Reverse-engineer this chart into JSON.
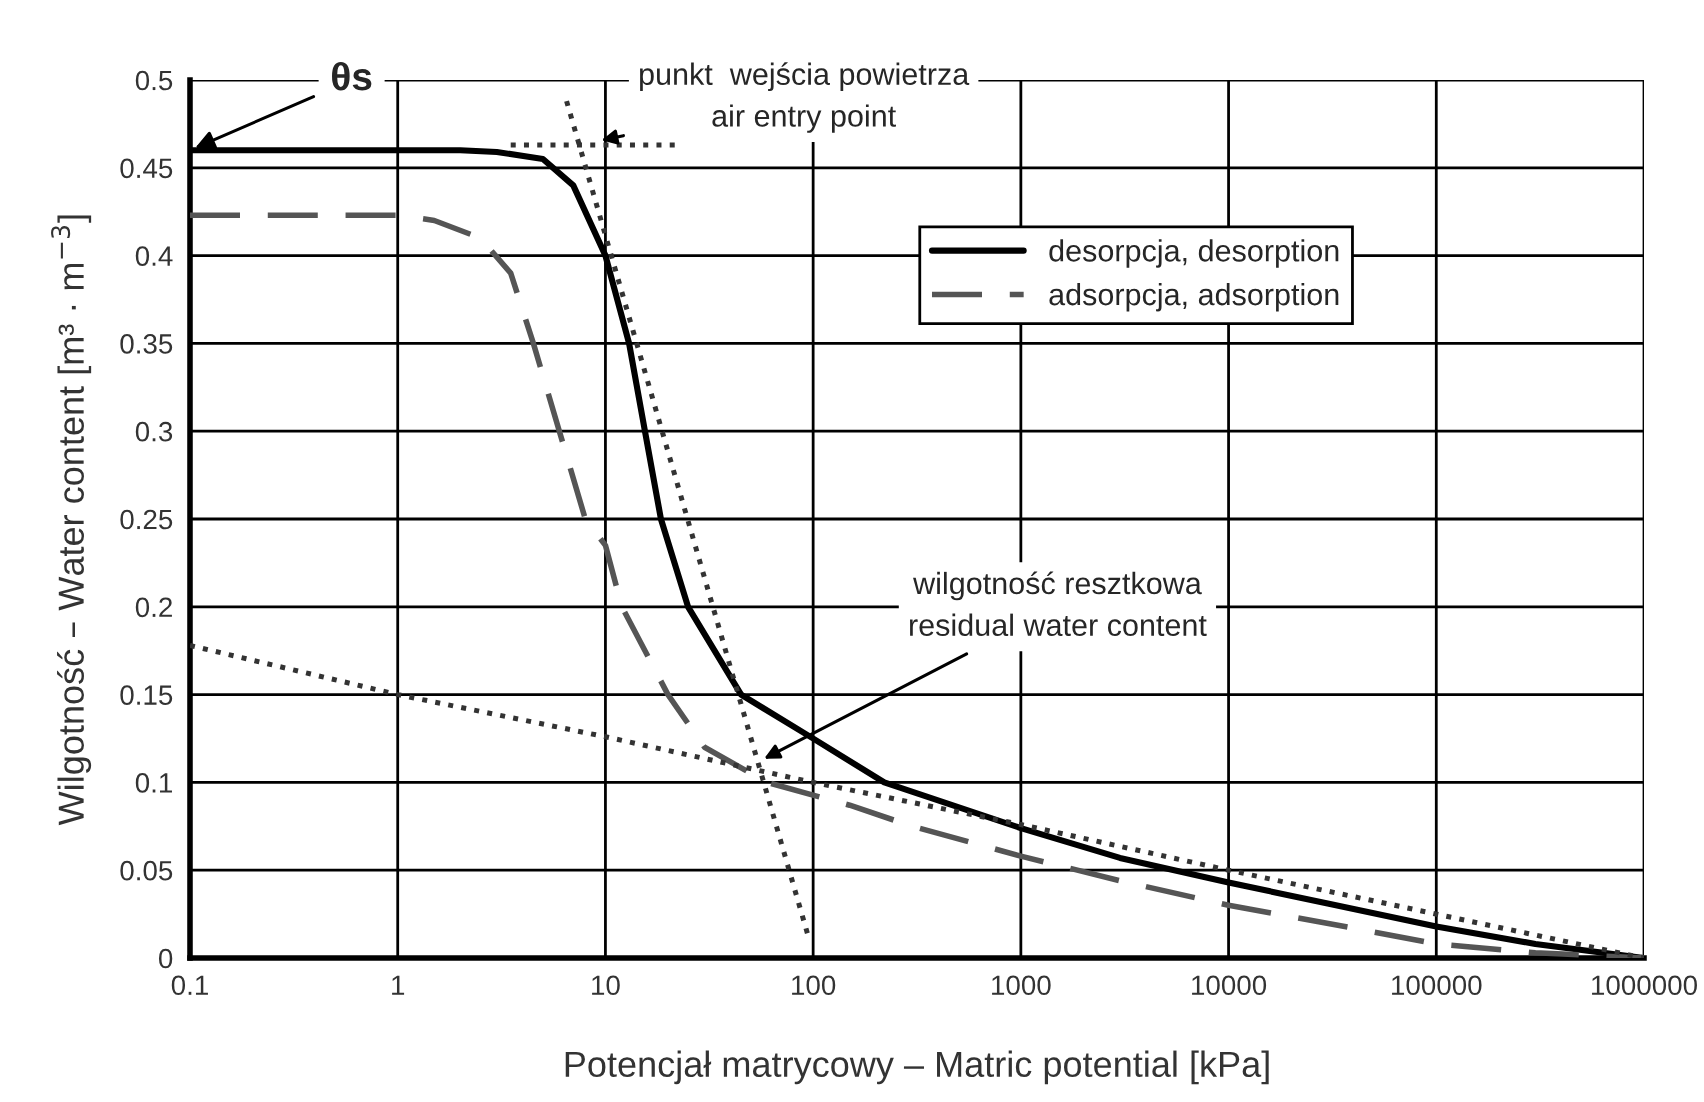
{
  "chart_data": {
    "type": "line",
    "xlabel": "Potencjał matrycowy – Matric potential [kPa]",
    "ylabel": "Wilgotność – Water content [m³ · m$^{−3}$]",
    "log": "x",
    "grid": true,
    "legend": "upper right",
    "xlim": [
      0.1,
      1000000
    ],
    "xticks": [
      0.1,
      1,
      10,
      100,
      1000,
      10000,
      100000,
      1000000
    ],
    "ylim": [
      0,
      0.5
    ],
    "yticks": [
      0,
      0.05,
      0.1,
      0.15,
      0.2,
      0.25,
      0.3,
      0.35,
      0.4,
      0.45,
      0.5
    ],
    "series": [
      {
        "name": "desorpcja, desorption",
        "color": "#000000",
        "line_style": "solid",
        "x": [
          0.1,
          1,
          2,
          3,
          5,
          7,
          10,
          13,
          15.5,
          18.5,
          25,
          45,
          100,
          220,
          1000,
          3000,
          10000,
          30000,
          100000,
          300000,
          1000000
        ],
        "values": [
          0.46,
          0.46,
          0.46,
          0.459,
          0.455,
          0.44,
          0.4,
          0.35,
          0.3,
          0.25,
          0.2,
          0.15,
          0.125,
          0.1,
          0.074,
          0.057,
          0.043,
          0.031,
          0.018,
          0.008,
          0.0
        ]
      },
      {
        "name": "adsorpcja, adsorption",
        "color": "#555555",
        "line_style": "dashed",
        "x": [
          0.1,
          1,
          1.5,
          2.5,
          3.5,
          4.5,
          6,
          8,
          10,
          12,
          20,
          30,
          60,
          150,
          300,
          1000,
          3000,
          10000,
          40000,
          100000,
          300000,
          1000000
        ],
        "values": [
          0.423,
          0.423,
          0.42,
          0.41,
          0.39,
          0.35,
          0.3,
          0.25,
          0.235,
          0.2,
          0.15,
          0.12,
          0.1,
          0.087,
          0.075,
          0.058,
          0.044,
          0.03,
          0.017,
          0.008,
          0.003,
          0.0
        ]
      },
      {
        "color": "#333333",
        "line_style": "dotted",
        "x": [
          3.5,
          23
        ],
        "values": [
          0.463,
          0.463
        ]
      },
      {
        "color": "#333333",
        "line_style": "dotted",
        "x": [
          6.5,
          96
        ],
        "values": [
          0.488,
          0.01
        ]
      },
      {
        "color": "#333333",
        "line_style": "dotted",
        "x": [
          0.1,
          1,
          10,
          100,
          1000,
          10000,
          100000,
          1000000
        ],
        "values": [
          0.178,
          0.15,
          0.126,
          0.1,
          0.076,
          0.05,
          0.025,
          0.0
        ]
      }
    ],
    "annotations": [
      {
        "text": "θs",
        "x": 0.1,
        "y": 0.46
      },
      {
        "text": "punkt  wejścia powietrza\nair entry point",
        "x": 9,
        "y": 0.465
      },
      {
        "text": "wilgotność resztkowa\nresidual water content",
        "x": 55,
        "y": 0.112
      }
    ]
  }
}
